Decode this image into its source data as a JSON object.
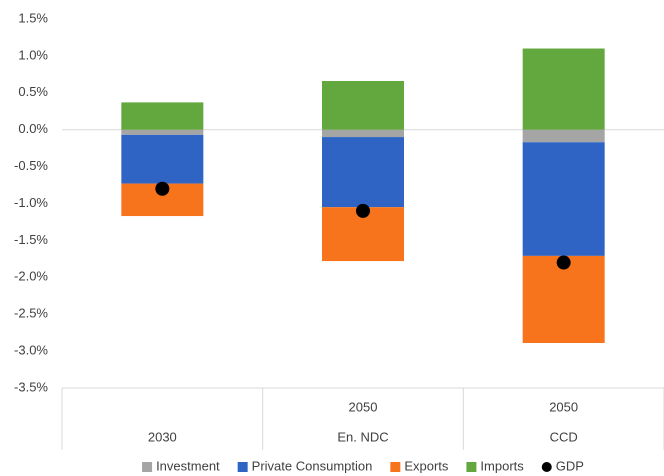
{
  "chart_data": {
    "type": "bar",
    "stacked": true,
    "categories": [
      [
        "2030"
      ],
      [
        "2050",
        "En. NDC"
      ],
      [
        "2050",
        "CCD"
      ]
    ],
    "series": [
      {
        "name": "Investment",
        "color": "#a5a5a5",
        "values": [
          -0.07,
          -0.1,
          -0.17
        ]
      },
      {
        "name": "Private Consumption",
        "color": "#2f64c4",
        "values": [
          -0.66,
          -0.95,
          -1.54
        ]
      },
      {
        "name": "Exports",
        "color": "#f7731c",
        "values": [
          -0.44,
          -0.73,
          -1.18
        ]
      },
      {
        "name": "Imports",
        "color": "#63a83e",
        "values": [
          0.37,
          0.66,
          1.1
        ]
      }
    ],
    "markers": {
      "name": "GDP",
      "color": "#000000",
      "values": [
        -0.8,
        -1.1,
        -1.8
      ]
    },
    "ylim": [
      -3.5,
      1.5
    ],
    "yticks": [
      {
        "value": -3.5,
        "label": "-3.5%"
      },
      {
        "value": -3,
        "label": "-3.0%"
      },
      {
        "value": -2.5,
        "label": "-2.5%"
      },
      {
        "value": -2,
        "label": "-2.0%"
      },
      {
        "value": -1.5,
        "label": "-1.5%"
      },
      {
        "value": -1,
        "label": "-1.0%"
      },
      {
        "value": -0.5,
        "label": "-0.5%"
      },
      {
        "value": 0,
        "label": "0.0%"
      },
      {
        "value": 0.5,
        "label": "0.5%"
      },
      {
        "value": 1,
        "label": "1.0%"
      },
      {
        "value": 1.5,
        "label": "1.5%"
      }
    ],
    "grid": false,
    "legend": "bottom"
  }
}
